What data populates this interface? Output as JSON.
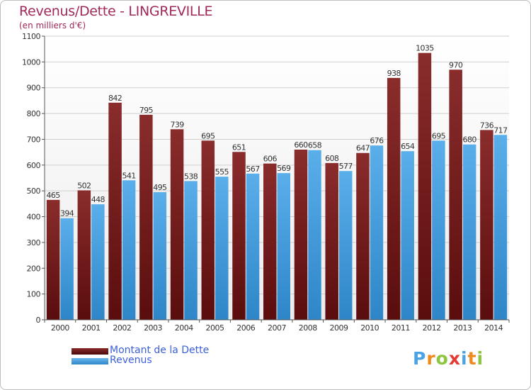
{
  "header": {
    "title": "Revenus/Dette - LINGREVILLE",
    "subtitle": "(en milliers d'€)"
  },
  "legend": {
    "items": [
      {
        "label": "Montant de la Dette",
        "color": "#6e1a1a"
      },
      {
        "label": "Revenus",
        "color": "#4aa3e6"
      }
    ]
  },
  "logo": {
    "text": "Proxiti",
    "letters": [
      {
        "ch": "P",
        "color": "#4aa3e6"
      },
      {
        "ch": "r",
        "color": "#f08a1e"
      },
      {
        "ch": "o",
        "color": "#8cc63f"
      },
      {
        "ch": "x",
        "color": "#e53935"
      },
      {
        "ch": "i",
        "color": "#4aa3e6"
      },
      {
        "ch": "t",
        "color": "#f08a1e"
      },
      {
        "ch": "i",
        "color": "#8cc63f"
      }
    ]
  },
  "chart_data": {
    "type": "bar",
    "title": "Revenus/Dette - LINGREVILLE",
    "subtitle": "(en milliers d'€)",
    "categories": [
      "2000",
      "2001",
      "2002",
      "2003",
      "2004",
      "2005",
      "2006",
      "2007",
      "2008",
      "2009",
      "2010",
      "2011",
      "2012",
      "2013",
      "2014"
    ],
    "series": [
      {
        "name": "Montant de la Dette",
        "color": "#6e1a1a",
        "values": [
          465,
          502,
          842,
          795,
          739,
          695,
          651,
          606,
          660,
          608,
          647,
          938,
          1035,
          970,
          736
        ]
      },
      {
        "name": "Revenus",
        "color": "#4aa3e6",
        "values": [
          394,
          448,
          541,
          495,
          538,
          555,
          567,
          569,
          658,
          577,
          676,
          654,
          695,
          680,
          717
        ]
      }
    ],
    "ylim": [
      0,
      1100
    ],
    "yticks": [
      0,
      100,
      200,
      300,
      400,
      500,
      600,
      700,
      800,
      900,
      1000,
      1100
    ],
    "grid": true,
    "legend_position": "bottom-left"
  }
}
